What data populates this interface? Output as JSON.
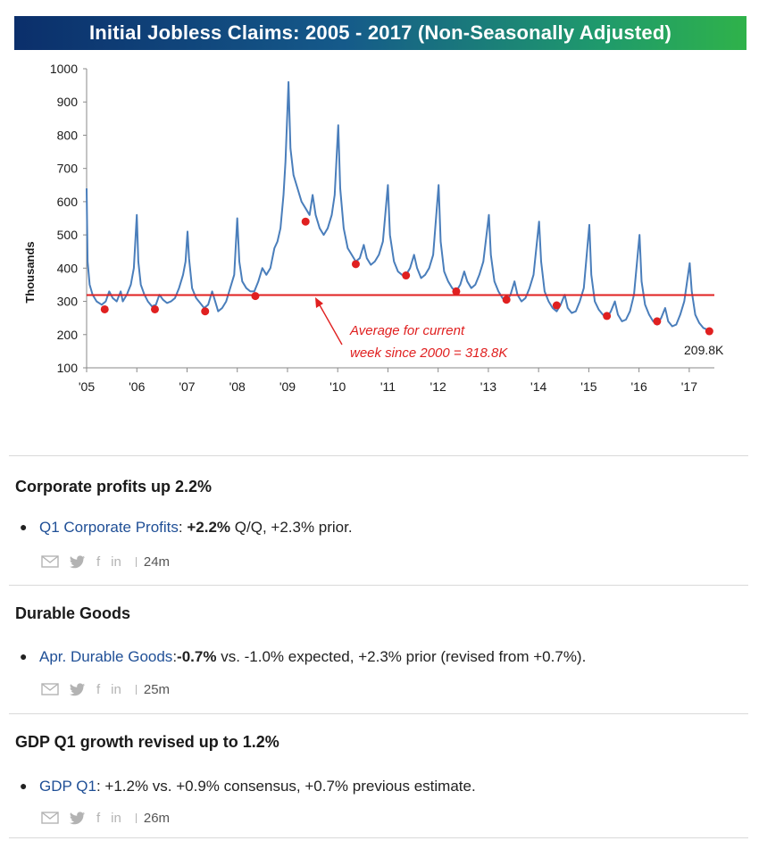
{
  "chart_data": {
    "type": "line",
    "title": "Initial Jobless Claims: 2005 - 2017 (Non-Seasonally Adjusted)",
    "ylabel": "Thousands",
    "xlabel": "",
    "ylim": [
      100,
      1000
    ],
    "yticks": [
      "100",
      "200",
      "300",
      "400",
      "500",
      "600",
      "700",
      "800",
      "900",
      "1000"
    ],
    "xlim": [
      2005.0,
      2017.5
    ],
    "xticks": [
      {
        "x": 2005,
        "label": "'05"
      },
      {
        "x": 2006,
        "label": "'06"
      },
      {
        "x": 2007,
        "label": "'07"
      },
      {
        "x": 2008,
        "label": "'08"
      },
      {
        "x": 2009,
        "label": "'09"
      },
      {
        "x": 2010,
        "label": "'10"
      },
      {
        "x": 2011,
        "label": "'11"
      },
      {
        "x": 2012,
        "label": "'12"
      },
      {
        "x": 2013,
        "label": "'13"
      },
      {
        "x": 2014,
        "label": "'14"
      },
      {
        "x": 2015,
        "label": "'15"
      },
      {
        "x": 2016,
        "label": "'16"
      },
      {
        "x": 2017,
        "label": "'17"
      }
    ],
    "series": [
      {
        "color": "#4a7ebb",
        "points": [
          [
            2005.0,
            640
          ],
          [
            2005.02,
            420
          ],
          [
            2005.06,
            350
          ],
          [
            2005.12,
            320
          ],
          [
            2005.2,
            300
          ],
          [
            2005.3,
            290
          ],
          [
            2005.38,
            300
          ],
          [
            2005.45,
            330
          ],
          [
            2005.52,
            310
          ],
          [
            2005.6,
            300
          ],
          [
            2005.68,
            330
          ],
          [
            2005.72,
            300
          ],
          [
            2005.8,
            320
          ],
          [
            2005.88,
            350
          ],
          [
            2005.94,
            400
          ],
          [
            2006.0,
            560
          ],
          [
            2006.03,
            420
          ],
          [
            2006.08,
            350
          ],
          [
            2006.15,
            320
          ],
          [
            2006.22,
            300
          ],
          [
            2006.3,
            285
          ],
          [
            2006.38,
            290
          ],
          [
            2006.45,
            320
          ],
          [
            2006.52,
            305
          ],
          [
            2006.6,
            295
          ],
          [
            2006.68,
            300
          ],
          [
            2006.76,
            310
          ],
          [
            2006.84,
            340
          ],
          [
            2006.92,
            380
          ],
          [
            2006.97,
            420
          ],
          [
            2007.01,
            510
          ],
          [
            2007.04,
            430
          ],
          [
            2007.1,
            340
          ],
          [
            2007.18,
            310
          ],
          [
            2007.26,
            295
          ],
          [
            2007.34,
            280
          ],
          [
            2007.42,
            290
          ],
          [
            2007.5,
            330
          ],
          [
            2007.56,
            300
          ],
          [
            2007.62,
            270
          ],
          [
            2007.7,
            280
          ],
          [
            2007.78,
            300
          ],
          [
            2007.86,
            340
          ],
          [
            2007.94,
            380
          ],
          [
            2008.0,
            550
          ],
          [
            2008.04,
            420
          ],
          [
            2008.1,
            360
          ],
          [
            2008.18,
            340
          ],
          [
            2008.26,
            330
          ],
          [
            2008.34,
            330
          ],
          [
            2008.42,
            360
          ],
          [
            2008.5,
            400
          ],
          [
            2008.58,
            380
          ],
          [
            2008.66,
            400
          ],
          [
            2008.74,
            460
          ],
          [
            2008.8,
            480
          ],
          [
            2008.86,
            520
          ],
          [
            2008.92,
            620
          ],
          [
            2008.96,
            720
          ],
          [
            2009.02,
            960
          ],
          [
            2009.06,
            760
          ],
          [
            2009.12,
            680
          ],
          [
            2009.2,
            640
          ],
          [
            2009.28,
            600
          ],
          [
            2009.36,
            580
          ],
          [
            2009.44,
            560
          ],
          [
            2009.5,
            620
          ],
          [
            2009.56,
            560
          ],
          [
            2009.64,
            520
          ],
          [
            2009.72,
            500
          ],
          [
            2009.8,
            520
          ],
          [
            2009.88,
            560
          ],
          [
            2009.94,
            620
          ],
          [
            2010.01,
            830
          ],
          [
            2010.05,
            640
          ],
          [
            2010.12,
            520
          ],
          [
            2010.2,
            460
          ],
          [
            2010.28,
            440
          ],
          [
            2010.36,
            420
          ],
          [
            2010.44,
            430
          ],
          [
            2010.52,
            470
          ],
          [
            2010.58,
            430
          ],
          [
            2010.66,
            410
          ],
          [
            2010.74,
            420
          ],
          [
            2010.82,
            440
          ],
          [
            2010.9,
            480
          ],
          [
            2011.0,
            650
          ],
          [
            2011.04,
            500
          ],
          [
            2011.12,
            420
          ],
          [
            2011.2,
            390
          ],
          [
            2011.28,
            380
          ],
          [
            2011.36,
            380
          ],
          [
            2011.44,
            400
          ],
          [
            2011.52,
            440
          ],
          [
            2011.58,
            400
          ],
          [
            2011.66,
            370
          ],
          [
            2011.74,
            380
          ],
          [
            2011.82,
            400
          ],
          [
            2011.9,
            440
          ],
          [
            2012.01,
            650
          ],
          [
            2012.05,
            480
          ],
          [
            2012.12,
            390
          ],
          [
            2012.2,
            360
          ],
          [
            2012.28,
            340
          ],
          [
            2012.36,
            330
          ],
          [
            2012.44,
            350
          ],
          [
            2012.52,
            390
          ],
          [
            2012.58,
            360
          ],
          [
            2012.66,
            340
          ],
          [
            2012.74,
            350
          ],
          [
            2012.82,
            380
          ],
          [
            2012.9,
            420
          ],
          [
            2013.01,
            560
          ],
          [
            2013.05,
            440
          ],
          [
            2013.12,
            360
          ],
          [
            2013.2,
            330
          ],
          [
            2013.28,
            310
          ],
          [
            2013.36,
            300
          ],
          [
            2013.44,
            320
          ],
          [
            2013.52,
            360
          ],
          [
            2013.58,
            320
          ],
          [
            2013.66,
            300
          ],
          [
            2013.74,
            310
          ],
          [
            2013.82,
            340
          ],
          [
            2013.9,
            380
          ],
          [
            2014.01,
            540
          ],
          [
            2014.05,
            420
          ],
          [
            2014.12,
            330
          ],
          [
            2014.2,
            300
          ],
          [
            2014.28,
            280
          ],
          [
            2014.36,
            270
          ],
          [
            2014.44,
            290
          ],
          [
            2014.52,
            320
          ],
          [
            2014.58,
            280
          ],
          [
            2014.66,
            265
          ],
          [
            2014.74,
            270
          ],
          [
            2014.82,
            300
          ],
          [
            2014.9,
            340
          ],
          [
            2015.01,
            530
          ],
          [
            2015.05,
            380
          ],
          [
            2015.12,
            300
          ],
          [
            2015.2,
            275
          ],
          [
            2015.28,
            260
          ],
          [
            2015.36,
            250
          ],
          [
            2015.44,
            270
          ],
          [
            2015.52,
            300
          ],
          [
            2015.58,
            260
          ],
          [
            2015.66,
            240
          ],
          [
            2015.74,
            245
          ],
          [
            2015.82,
            270
          ],
          [
            2015.9,
            320
          ],
          [
            2016.01,
            500
          ],
          [
            2016.05,
            360
          ],
          [
            2016.12,
            290
          ],
          [
            2016.2,
            260
          ],
          [
            2016.28,
            240
          ],
          [
            2016.36,
            230
          ],
          [
            2016.44,
            250
          ],
          [
            2016.52,
            280
          ],
          [
            2016.58,
            240
          ],
          [
            2016.66,
            225
          ],
          [
            2016.74,
            230
          ],
          [
            2016.82,
            260
          ],
          [
            2016.9,
            300
          ],
          [
            2017.01,
            415
          ],
          [
            2017.05,
            330
          ],
          [
            2017.12,
            260
          ],
          [
            2017.2,
            235
          ],
          [
            2017.28,
            220
          ],
          [
            2017.36,
            215
          ],
          [
            2017.4,
            210
          ]
        ]
      }
    ],
    "reference_line": {
      "value": 318.8,
      "color": "#e02020"
    },
    "markers": {
      "color": "#e02020",
      "points": [
        [
          2005.36,
          276
        ],
        [
          2006.36,
          276
        ],
        [
          2007.36,
          270
        ],
        [
          2008.36,
          316
        ],
        [
          2009.36,
          540
        ],
        [
          2010.36,
          412
        ],
        [
          2011.36,
          378
        ],
        [
          2012.36,
          330
        ],
        [
          2013.36,
          305
        ],
        [
          2014.36,
          288
        ],
        [
          2015.36,
          256
        ],
        [
          2016.36,
          240
        ],
        [
          2017.4,
          210
        ]
      ]
    },
    "annotations": {
      "average_line1": "Average for current",
      "average_line2": "week since 2000 = 318.8K",
      "last_value": "209.8K"
    }
  },
  "news": [
    {
      "title": "Corporate profits up 2.2%",
      "link": "Q1 Corporate Profits",
      "sep": ": ",
      "bold": "+2.2%",
      "rest": " Q/Q, +2.3% prior.",
      "time": "24m"
    },
    {
      "title": "Durable Goods",
      "link": "Apr. Durable Goods",
      "sep": ":",
      "bold": "-0.7%",
      "rest": " vs. -1.0% expected, +2.3% prior (revised from +0.7%).",
      "time": "25m"
    },
    {
      "title": "GDP Q1 growth revised up to 1.2%",
      "link": "GDP Q1",
      "sep": ": ",
      "bold": "",
      "rest": "+1.2% vs. +0.9% consensus, +0.7% previous estimate.",
      "time": "26m"
    }
  ],
  "share_icons": [
    "envelope-icon",
    "twitter-icon",
    "facebook-icon",
    "linkedin-icon"
  ],
  "share_glyphs": {
    "facebook": "f",
    "linkedin": "in"
  }
}
